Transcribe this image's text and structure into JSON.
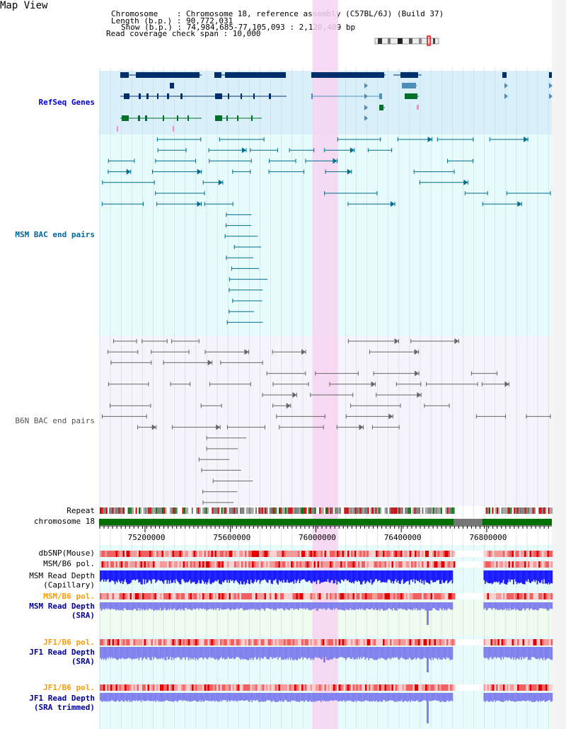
{
  "title": "Map View",
  "header": {
    "line1": "Chromosome    : Chromosome 18, reference assembly (C57BL/6J) (Build 37)",
    "line2": "Length (b.p.) : 90,772,031",
    "line3": "Show (b.p.) : 74,984,685-77,105,093 : 2,120,409 bp",
    "line4": "Read coverage check span : 10,000"
  },
  "tracks": {
    "refseq": "RefSeq Genes",
    "msm_bac": "MSM BAC end pairs",
    "b6n_bac": "B6N BAC end pairs",
    "repeat": "Repeat",
    "chromosome": "chromosome 18",
    "dbsnp": "dbSNP(Mouse)",
    "msm_b6_pol": "MSM/B6 pol.",
    "msm_rd_cap1": "MSM Read Depth",
    "msm_rd_cap2": "(Capillary)",
    "msm_b6_pol2": "MSM/B6 pol.",
    "msm_rd_sra1": "MSM Read Depth",
    "msm_rd_sra2": "(SRA)",
    "jf1_b6_pol": "JF1/B6 pol.",
    "jf1_rd_sra1": "JF1 Read Depth",
    "jf1_rd_sra2": "(SRA)",
    "jf1_b6_pol2": "JF1/B6 pol.",
    "jf1_rd_trim1": "JF1 Read Depth",
    "jf1_rd_trim2": "(SRA trimmed)"
  },
  "axis": {
    "ticks": [
      "75200000",
      "75600000",
      "76000000",
      "76400000",
      "76800000"
    ],
    "tick_values": [
      75200000,
      75600000,
      76000000,
      76400000,
      76800000
    ],
    "range": [
      74984685,
      77105093
    ],
    "highlight": [
      75984000,
      76104000
    ],
    "gap": [
      76645000,
      76780000
    ]
  },
  "colors": {
    "refseq_label": "#0000cc",
    "msm_label": "#006699",
    "b6n_label": "#555555",
    "pol_msm_label": "#ff9900",
    "depth_label": "#000099",
    "refseq_bg": "#d9f0fb",
    "msm_bg": "#e6fbfb",
    "b6n_bg": "#f4f4fa",
    "lower_bg": "#e8fbfb",
    "highlight": "#f7d4f2",
    "chrom": "#007000",
    "gene_dark": "#002e6b",
    "gene_mid": "#4d8fb8",
    "gene_green": "#00702a",
    "bac_msm": "#006e8c",
    "bac_b6n": "#666666"
  }
}
